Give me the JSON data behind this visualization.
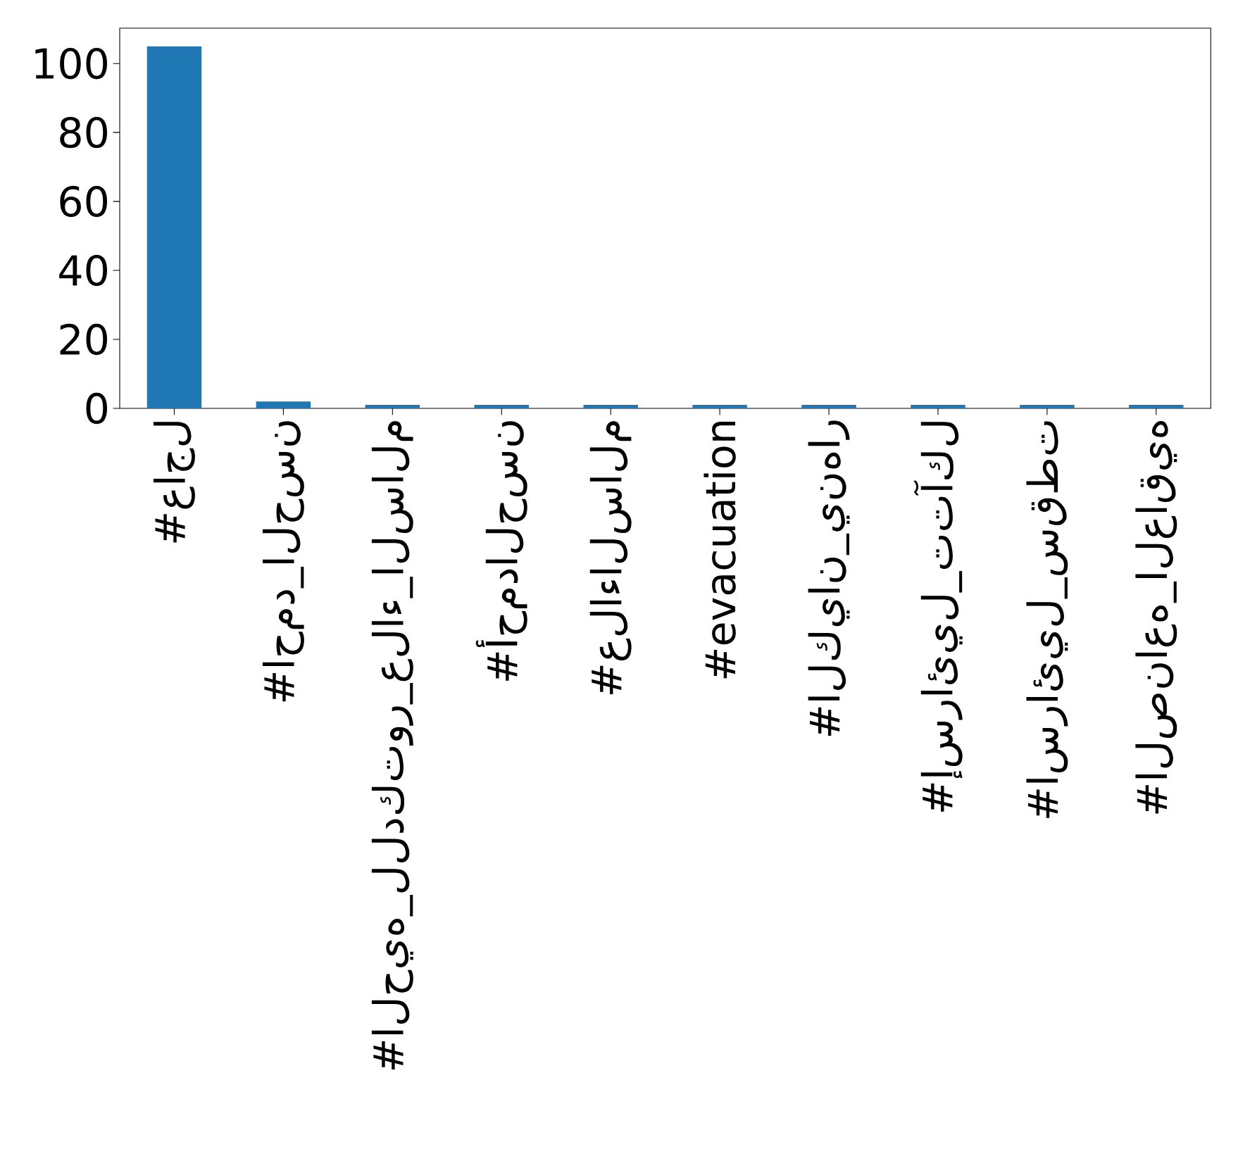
{
  "chart_data": {
    "type": "bar",
    "categories": [
      "#عاجل",
      "#احمد_الحسن",
      "#الحيه_للدكتور_علاء_السالم",
      "#أحمدالحسن",
      "#علاءالسالم",
      "#evacuation",
      "#الكيان_ينهار",
      "#إسرائيل_تتآكل",
      "#اسرائيل_سقطت",
      "#الصناعه_العاقيه"
    ],
    "values": [
      105,
      2,
      1,
      1,
      1,
      1,
      1,
      1,
      1,
      1
    ],
    "color": "#1f77b4",
    "ylim": [
      0,
      110.25
    ],
    "yticks": [
      0,
      20,
      40,
      60,
      80,
      100
    ]
  }
}
